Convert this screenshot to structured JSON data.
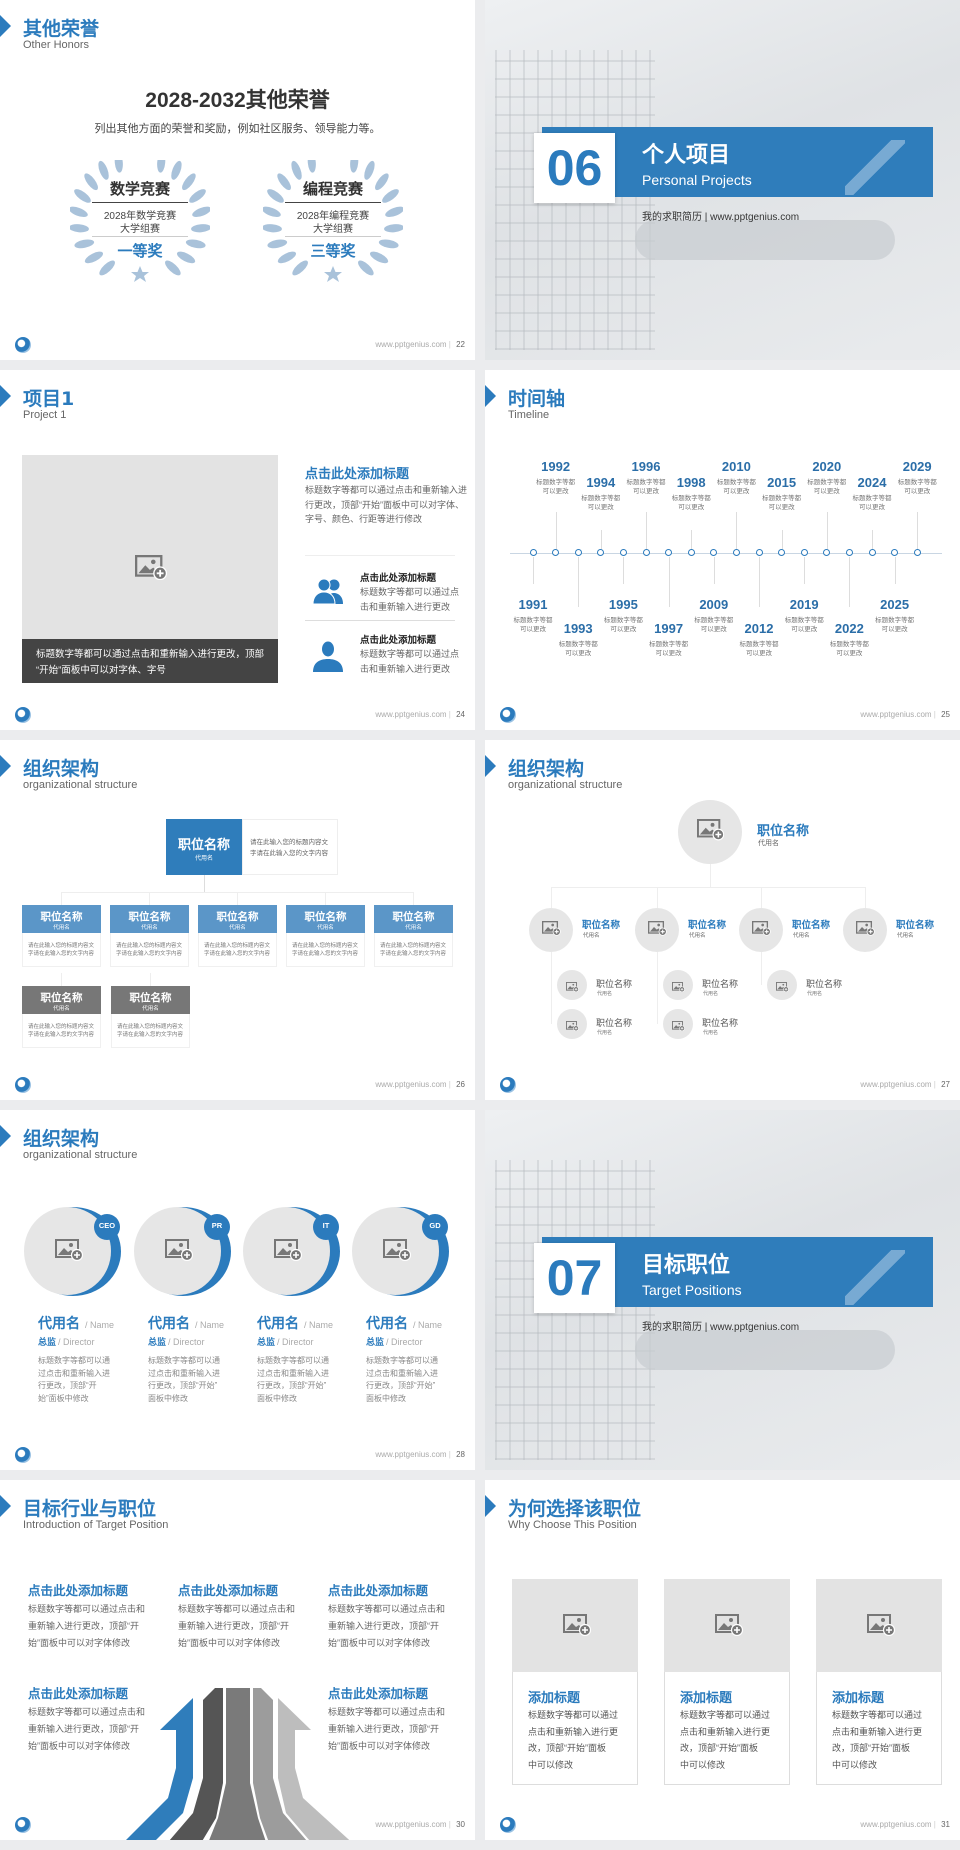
{
  "site": "www.pptgenius.com",
  "colors": {
    "accent": "#2b7bbd",
    "accent_light": "#5b96c8",
    "gray_box": "#777777",
    "placeholder": "#e3e3e3",
    "laurel": "#a9c2da"
  },
  "slides": {
    "s22": {
      "title": "其他荣誉",
      "subtitle": "Other Honors",
      "page": "22",
      "heading": "2028-2032其他荣誉",
      "desc": "列出其他方面的荣誉和奖励，例如社区服务、领导能力等。",
      "awards": [
        {
          "name": "数学竞赛",
          "line1": "2028年数学竞赛",
          "line2": "大学组赛",
          "prize": "一等奖"
        },
        {
          "name": "编程竞赛",
          "line1": "2028年编程竞赛",
          "line2": "大学组赛",
          "prize": "三等奖"
        }
      ]
    },
    "s23": {
      "number": "06",
      "title": "个人项目",
      "subtitle": "Personal Projects",
      "tagline": "我的求职简历 | www.pptgenius.com"
    },
    "s24": {
      "title": "项目1",
      "subtitle": "Project 1",
      "page": "24",
      "caption": [
        "标题数字等都可以通过点击和重新输入进行更改，顶部",
        "“开始”面板中可以对字体、字号"
      ],
      "heading": "点击此处添加标题",
      "para": [
        "标题数字等都可以通过点击和重新输入进",
        "行更改，顶部“开始”面板中可以对字体、",
        "字号、颜色、行距等进行修改"
      ],
      "items": [
        {
          "icon": "users-icon",
          "title": "点击此处添加标题",
          "lines": [
            "标题数字等都可以通过点",
            "击和重新输入进行更改"
          ]
        },
        {
          "icon": "user-icon",
          "title": "点击此处添加标题",
          "lines": [
            "标题数字等都可以通过点",
            "击和重新输入进行更改"
          ]
        }
      ]
    },
    "s25": {
      "title": "时间轴",
      "subtitle": "Timeline",
      "page": "25",
      "item_text": [
        "标题数字等都",
        "可以更改"
      ],
      "events": [
        {
          "year": "1991",
          "pos": "bottom"
        },
        {
          "year": "1992",
          "pos": "top"
        },
        {
          "year": "1993",
          "pos": "bottom"
        },
        {
          "year": "1994",
          "pos": "top"
        },
        {
          "year": "1995",
          "pos": "bottom"
        },
        {
          "year": "1996",
          "pos": "top"
        },
        {
          "year": "1997",
          "pos": "bottom"
        },
        {
          "year": "1998",
          "pos": "top"
        },
        {
          "year": "2009",
          "pos": "bottom"
        },
        {
          "year": "2010",
          "pos": "top"
        },
        {
          "year": "2012",
          "pos": "bottom"
        },
        {
          "year": "2015",
          "pos": "top"
        },
        {
          "year": "2019",
          "pos": "bottom"
        },
        {
          "year": "2020",
          "pos": "top"
        },
        {
          "year": "2022",
          "pos": "bottom"
        },
        {
          "year": "2024",
          "pos": "top"
        },
        {
          "year": "2025",
          "pos": "bottom"
        },
        {
          "year": "2029",
          "pos": "top"
        }
      ]
    },
    "s26": {
      "title": "组织架构",
      "subtitle": "organizational structure",
      "page": "26",
      "top": {
        "name": "职位名称",
        "alias": "代用名",
        "desc": [
          "请在此输入您的标题内容文",
          "字请在此输入您的文字内容"
        ]
      },
      "box_name": "职位名称",
      "box_alias": "代用名",
      "box_desc": [
        "请在此输入您的标题内容文",
        "字请在此输入您的文字内容"
      ]
    },
    "s27": {
      "title": "组织架构",
      "subtitle": "organizational structure",
      "page": "27",
      "name": "职位名称",
      "alias": "代用名"
    },
    "s28": {
      "title": "组织架构",
      "subtitle": "organizational structure",
      "page": "28",
      "people": [
        {
          "badge": "CEO",
          "lines": [
            "标题数字等都可以通",
            "过点击和重新输入进",
            "行更改，顶部“开",
            "始”面板中修改"
          ]
        },
        {
          "badge": "PR",
          "lines": [
            "标题数字等都可以通",
            "过点击和重新输入进",
            "行更改，顶部“开始”",
            "面板中修改"
          ]
        },
        {
          "badge": "IT",
          "lines": [
            "标题数字等都可以通",
            "过点击和重新输入进",
            "行更改，顶部“开始”",
            "面板中修改"
          ]
        },
        {
          "badge": "GD",
          "lines": [
            "标题数字等都可以通",
            "过点击和重新输入进",
            "行更改，顶部“开始”",
            "面板中修改"
          ]
        }
      ],
      "name_cn": "代用名",
      "name_en": "/ Name",
      "role_cn": "总监",
      "role_en": "/  Director"
    },
    "s29": {
      "number": "07",
      "title": "目标职位",
      "subtitle": "Target Positions",
      "tagline": "我的求职简历 | www.pptgenius.com"
    },
    "s30": {
      "title": "目标行业与职位",
      "subtitle": "Introduction of Target Position",
      "page": "30",
      "heading": "点击此处添加标题",
      "lines": [
        "标题数字等都可以通过点击和",
        "重新输入进行更改，顶部“开",
        "始”面板中可以对字体修改"
      ]
    },
    "s31": {
      "title": "为何选择该职位",
      "subtitle": "Why Choose This Position",
      "page": "31",
      "card_title": "添加标题",
      "card_lines": [
        "标题数字等都可以通过",
        "点击和重新输入进行更",
        "改，顶部“开始”面板",
        "中可以修改"
      ]
    }
  }
}
